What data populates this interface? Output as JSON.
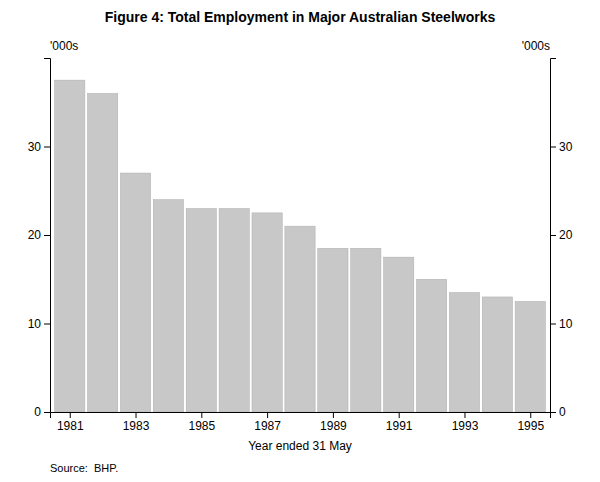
{
  "chart_data": {
    "type": "bar",
    "title": "Figure 4: Total Employment in Major Australian Steelworks",
    "xlabel": "Year ended 31 May",
    "ylabel": "'000s",
    "y2label": "'000s",
    "annotations": [
      "Source:  BHP."
    ],
    "x": [
      1981,
      1982,
      1983,
      1984,
      1985,
      1986,
      1987,
      1988,
      1989,
      1990,
      1991,
      1992,
      1993,
      1994,
      1995
    ],
    "values": [
      37.5,
      36.0,
      27.0,
      24.0,
      23.0,
      23.0,
      22.5,
      21.0,
      18.5,
      18.5,
      17.5,
      15.0,
      13.5,
      13.0,
      12.5
    ],
    "color": "#c8c8c8",
    "xlim": [
      1980.4,
      1995.6
    ],
    "xticks": [
      1981,
      1983,
      1985,
      1987,
      1989,
      1991,
      1993,
      1995
    ],
    "ylim": [
      0,
      40
    ],
    "yticks": [
      0,
      10,
      20,
      30
    ],
    "y2lim": [
      0,
      40
    ],
    "y2ticks": [
      0,
      10,
      20,
      30
    ],
    "grid": false
  }
}
